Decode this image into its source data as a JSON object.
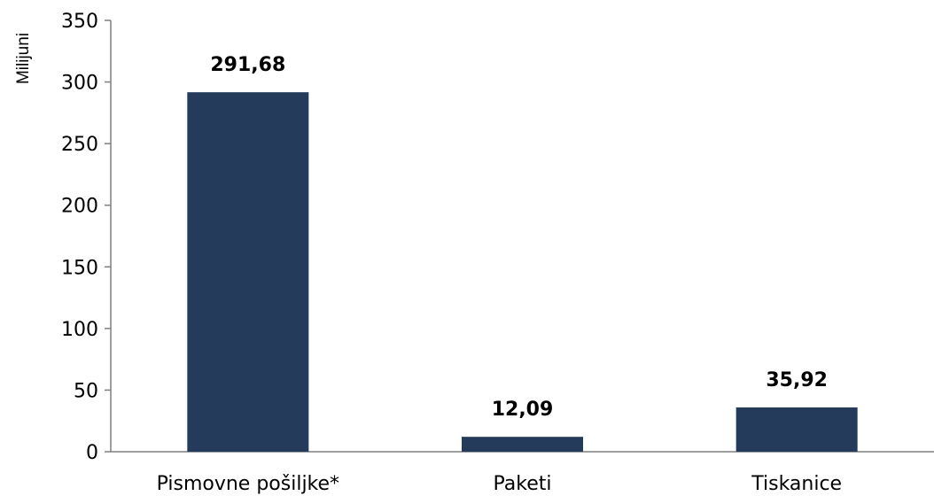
{
  "chart_data": {
    "type": "bar",
    "categories": [
      "Pismovne pošiljke*",
      "Paketi",
      "Tiskanice"
    ],
    "values": [
      291.68,
      12.09,
      35.92
    ],
    "data_labels": [
      "291,68",
      "12,09",
      "35,92"
    ],
    "ylabel": "Milijuni",
    "ylim": [
      0,
      350
    ],
    "yticks": [
      0,
      50,
      100,
      150,
      200,
      250,
      300,
      350
    ],
    "grid": false,
    "legend": "none",
    "bar_color": "#243B5C",
    "axis_color": "#7F7F7F"
  }
}
